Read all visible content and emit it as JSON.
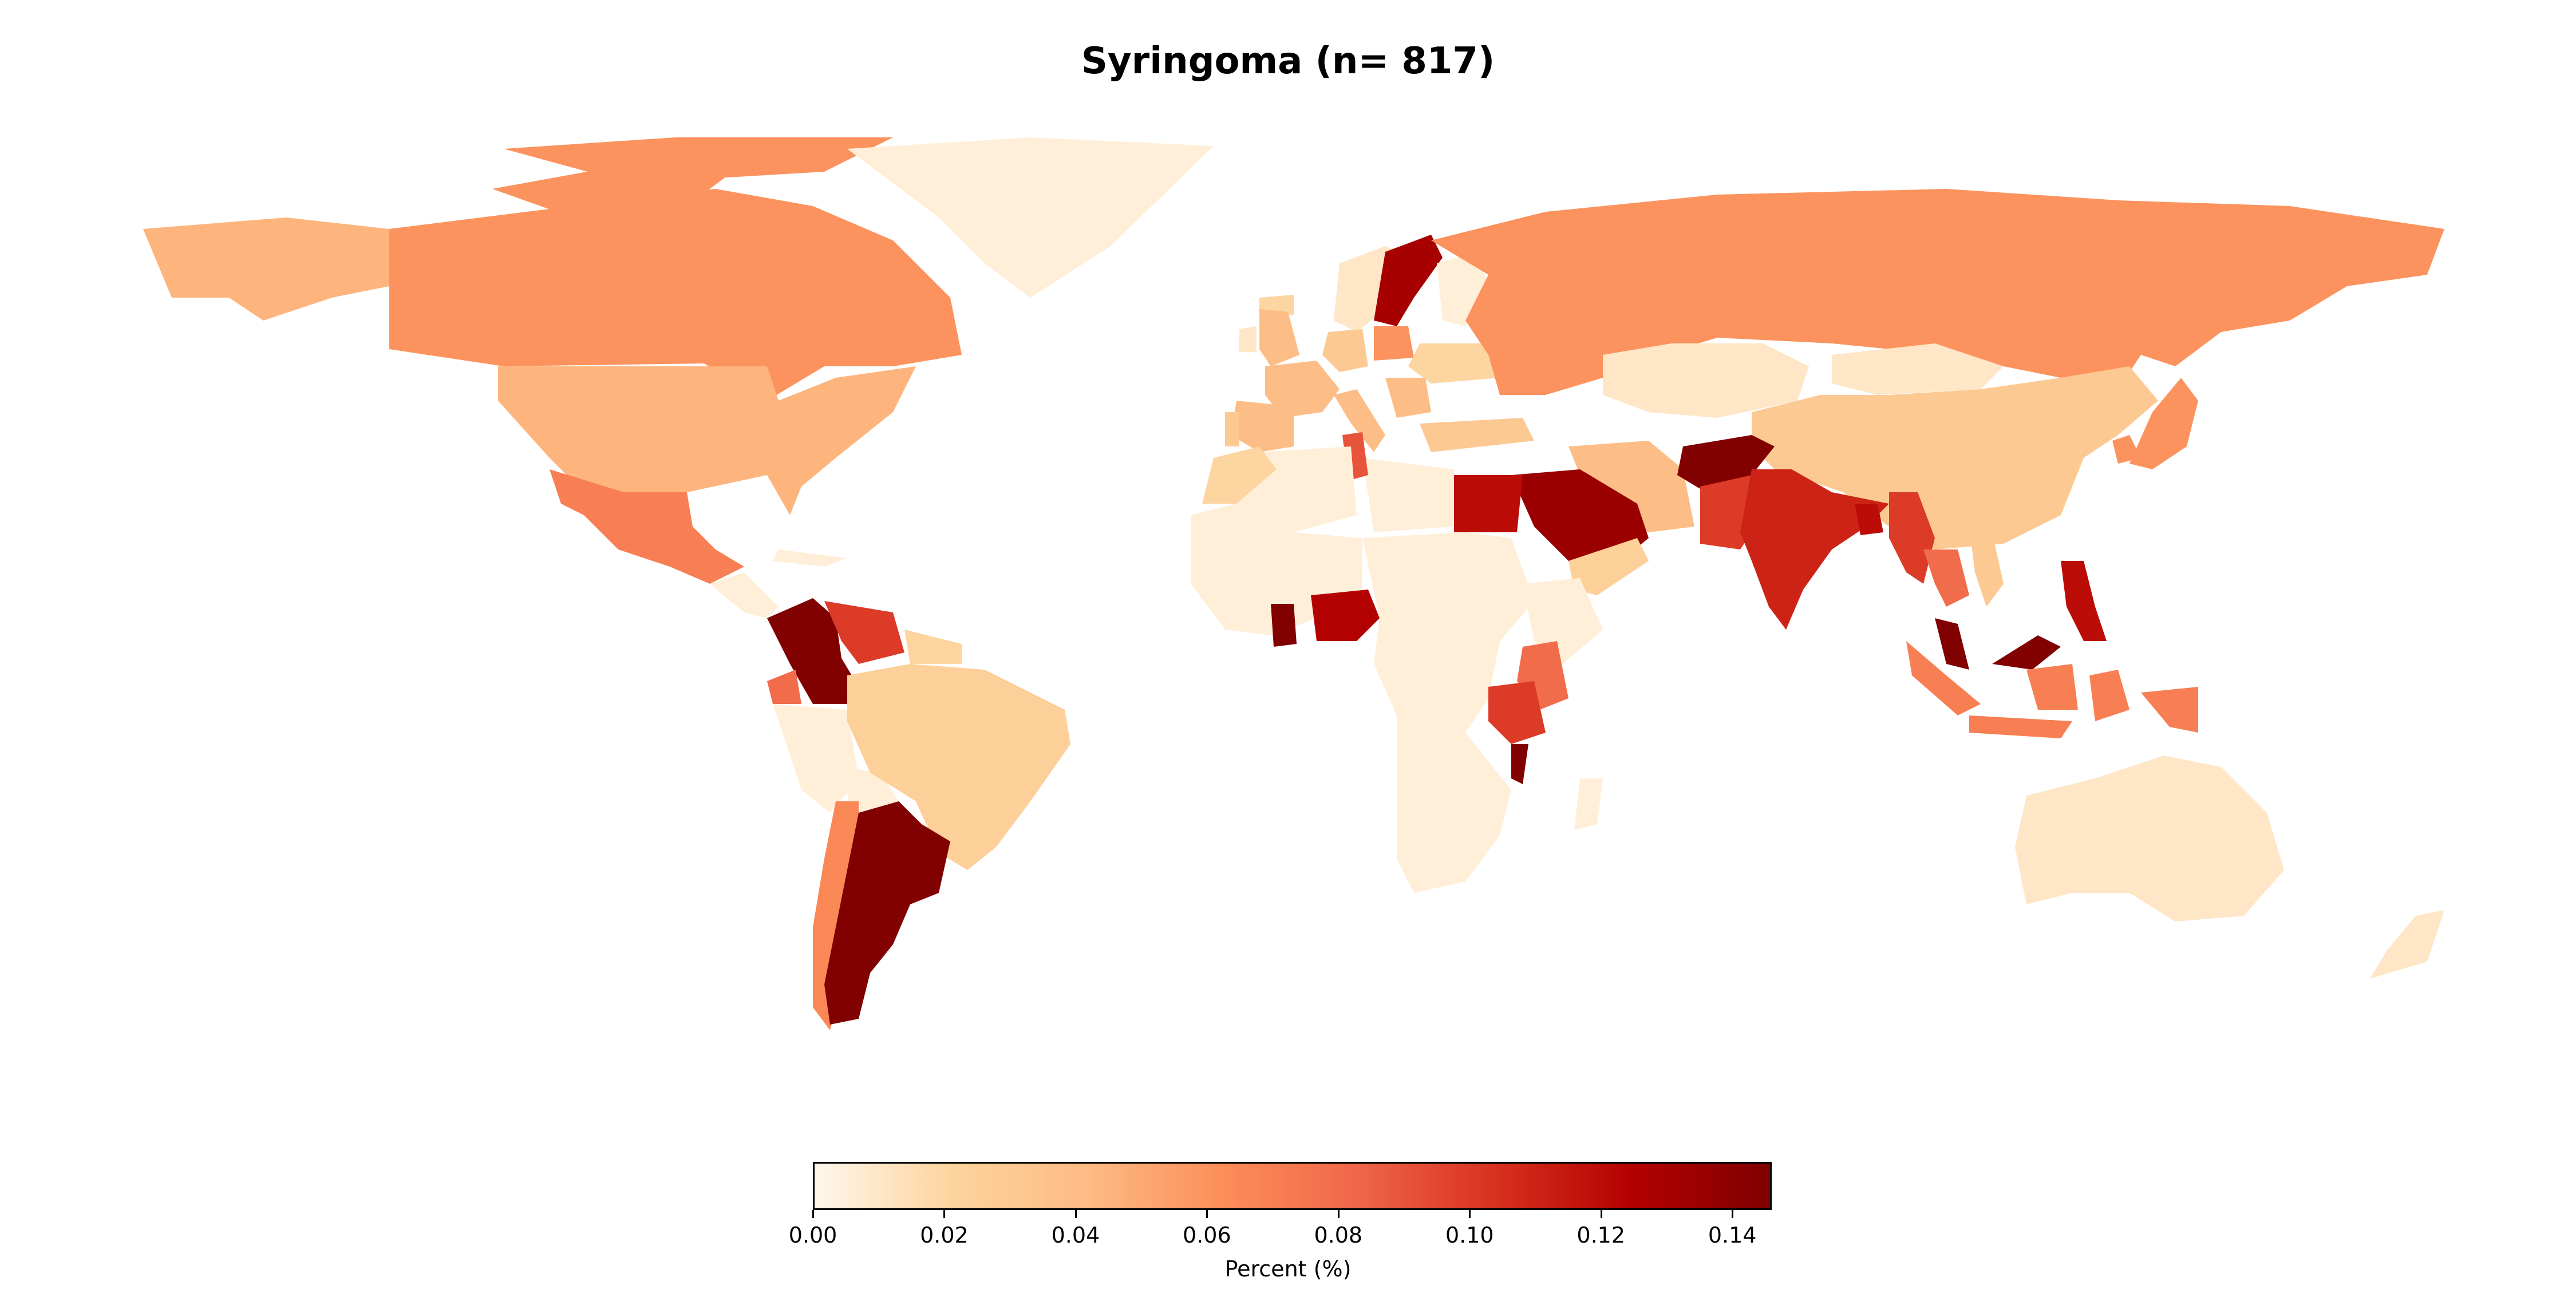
{
  "title": "Syringoma (n= 817)",
  "colormap": [
    "#fff7ec",
    "#fdd49e",
    "#fdbb84",
    "#fc8d59",
    "#ef6548",
    "#d7301f",
    "#b30000",
    "#7f0000"
  ],
  "missing_color": "#d9d9d9",
  "colorbar": {
    "label": "Percent (%)",
    "min": 0.0,
    "max": 0.146,
    "ticks": [
      "0.00",
      "0.02",
      "0.04",
      "0.06",
      "0.08",
      "0.10",
      "0.12",
      "0.14"
    ],
    "orientation": "horizontal"
  },
  "chart_data": {
    "type": "choropleth",
    "title": "Syringoma (n= 817)",
    "colorbar_label": "Percent (%)",
    "range": [
      0.0,
      0.146
    ],
    "countries": [
      {
        "name": "Canada",
        "value": 0.06
      },
      {
        "name": "United States",
        "value": 0.045
      },
      {
        "name": "Alaska",
        "value": 0.045
      },
      {
        "name": "Greenland",
        "value": 0.005
      },
      {
        "name": "Mexico",
        "value": 0.07
      },
      {
        "name": "Cuba",
        "value": 0.005
      },
      {
        "name": "Central America",
        "value": 0.005
      },
      {
        "name": "Colombia",
        "value": 0.145
      },
      {
        "name": "Venezuela",
        "value": 0.1
      },
      {
        "name": "Ecuador",
        "value": 0.08
      },
      {
        "name": "Peru",
        "value": 0.005
      },
      {
        "name": "Bolivia",
        "value": 0.005
      },
      {
        "name": "Brazil",
        "value": 0.025
      },
      {
        "name": "Guianas",
        "value": 0.02
      },
      {
        "name": "Paraguay",
        "value": 0.005
      },
      {
        "name": "Chile",
        "value": 0.065
      },
      {
        "name": "Argentina",
        "value": 0.145
      },
      {
        "name": "Iceland",
        "value": 0.02
      },
      {
        "name": "United Kingdom",
        "value": 0.04
      },
      {
        "name": "Ireland",
        "value": 0.01
      },
      {
        "name": "Norway",
        "value": 0.01
      },
      {
        "name": "Sweden",
        "value": 0.13
      },
      {
        "name": "Finland",
        "value": 0.005
      },
      {
        "name": "France",
        "value": 0.04
      },
      {
        "name": "Spain",
        "value": 0.04
      },
      {
        "name": "Portugal",
        "value": 0.03
      },
      {
        "name": "Germany",
        "value": 0.03
      },
      {
        "name": "Poland",
        "value": 0.06
      },
      {
        "name": "Italy",
        "value": 0.04
      },
      {
        "name": "Ukraine",
        "value": 0.02
      },
      {
        "name": "Balkans",
        "value": 0.04
      },
      {
        "name": "Turkey",
        "value": 0.03
      },
      {
        "name": "Russia",
        "value": 0.06
      },
      {
        "name": "Kazakhstan",
        "value": 0.01
      },
      {
        "name": "Mongolia",
        "value": 0.01
      },
      {
        "name": "China",
        "value": 0.03
      },
      {
        "name": "Japan",
        "value": 0.06
      },
      {
        "name": "South Korea",
        "value": 0.06
      },
      {
        "name": "Iran",
        "value": 0.04
      },
      {
        "name": "Afghanistan",
        "value": 0.145
      },
      {
        "name": "Pakistan",
        "value": 0.1
      },
      {
        "name": "India",
        "value": 0.11
      },
      {
        "name": "Bangladesh",
        "value": 0.12
      },
      {
        "name": "Myanmar",
        "value": 0.1
      },
      {
        "name": "Thailand",
        "value": 0.08
      },
      {
        "name": "Vietnam",
        "value": 0.03
      },
      {
        "name": "Malaysia",
        "value": 0.145
      },
      {
        "name": "Indonesia",
        "value": 0.07
      },
      {
        "name": "Philippines",
        "value": 0.12
      },
      {
        "name": "Papua New Guinea",
        "value": 0.07
      },
      {
        "name": "Australia",
        "value": 0.01
      },
      {
        "name": "New Zealand",
        "value": 0.01
      },
      {
        "name": "Saudi Arabia",
        "value": 0.135
      },
      {
        "name": "Yemen",
        "value": 0.025
      },
      {
        "name": "Egypt",
        "value": 0.12
      },
      {
        "name": "Libya",
        "value": 0.005
      },
      {
        "name": "Tunisia",
        "value": 0.09
      },
      {
        "name": "Algeria",
        "value": 0.005
      },
      {
        "name": "Morocco",
        "value": 0.02
      },
      {
        "name": "West Africa",
        "value": 0.005
      },
      {
        "name": "Ghana",
        "value": 0.145
      },
      {
        "name": "Nigeria",
        "value": 0.125
      },
      {
        "name": "Central Africa",
        "value": 0.005
      },
      {
        "name": "Ethiopia",
        "value": 0.005
      },
      {
        "name": "Kenya",
        "value": 0.08
      },
      {
        "name": "Tanzania",
        "value": 0.1
      },
      {
        "name": "Malawi",
        "value": 0.145
      },
      {
        "name": "Southern Africa",
        "value": 0.005
      },
      {
        "name": "Madagascar",
        "value": 0.005
      }
    ]
  }
}
